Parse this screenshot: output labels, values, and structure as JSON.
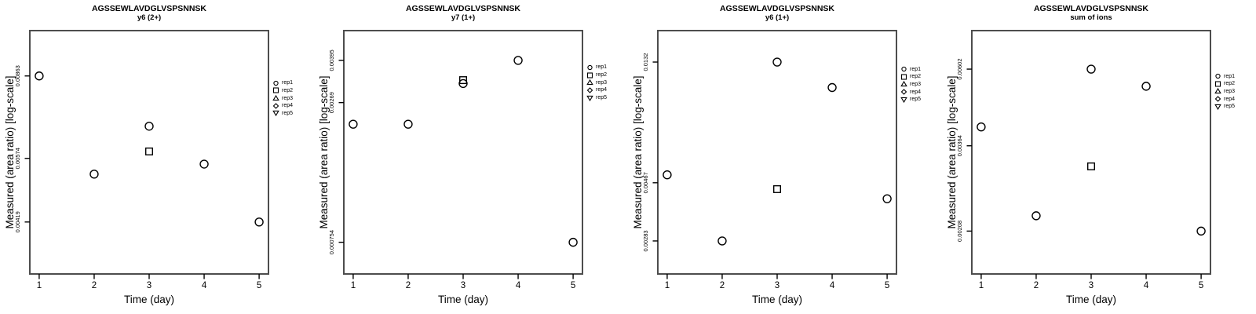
{
  "figure": {
    "xlabel": "Time (day)",
    "ylabel": "Measured (area ratio) [log-scale]",
    "legend": [
      {
        "label": "rep1",
        "marker": "circle"
      },
      {
        "label": "rep2",
        "marker": "square"
      },
      {
        "label": "rep3",
        "marker": "triangle-up"
      },
      {
        "label": "rep4",
        "marker": "diamond"
      },
      {
        "label": "rep5",
        "marker": "triangle-down"
      }
    ],
    "colors": {
      "marker": "#000000",
      "box": "#4d4d4d",
      "tick": "#000000",
      "text": "#000000",
      "background": "#ffffff"
    }
  },
  "chart_data": [
    {
      "type": "scatter",
      "title": "AGSSEWLAVDGLVSPSNNSK",
      "subtitle": "y6 (2+)",
      "xlabel": "Time (day)",
      "ylabel": "Measured (area ratio) [log-scale]",
      "x_scale": "linear",
      "y_scale": "log",
      "xlim": [
        0.83,
        5.17
      ],
      "ylim": [
        0.00324,
        0.0108
      ],
      "xticks": [
        "1",
        "2",
        "3",
        "4",
        "5"
      ],
      "yticks": [
        "0.00419",
        "0.00574",
        "0.00863"
      ],
      "grid": false,
      "legend_position": "right-outside",
      "series": [
        {
          "name": "rep1",
          "marker": "circle",
          "points": [
            [
              1,
              0.00863
            ],
            [
              2,
              0.00531
            ],
            [
              3,
              0.00673
            ],
            [
              4,
              0.00558
            ],
            [
              5,
              0.00419
            ]
          ]
        },
        {
          "name": "rep2",
          "marker": "square",
          "points": [
            [
              3,
              0.00594
            ]
          ]
        },
        {
          "name": "rep3",
          "marker": "triangle-up",
          "points": []
        },
        {
          "name": "rep4",
          "marker": "diamond",
          "points": []
        },
        {
          "name": "rep5",
          "marker": "triangle-down",
          "points": []
        }
      ]
    },
    {
      "type": "scatter",
      "title": "AGSSEWLAVDGLVSPSNNSK",
      "subtitle": "y7 (1+)",
      "xlabel": "Time (day)",
      "ylabel": "Measured (area ratio) [log-scale]",
      "x_scale": "linear",
      "y_scale": "log",
      "xlim": [
        0.83,
        5.17
      ],
      "ylim": [
        0.000565,
        0.00518
      ],
      "xticks": [
        "1",
        "2",
        "3",
        "4",
        "5"
      ],
      "yticks": [
        "0.000754",
        "0.00269",
        "0.00395"
      ],
      "grid": false,
      "legend_position": "right-outside",
      "series": [
        {
          "name": "rep1",
          "marker": "circle",
          "points": [
            [
              1,
              0.00221
            ],
            [
              2,
              0.00221
            ],
            [
              3,
              0.0032
            ],
            [
              4,
              0.00395
            ],
            [
              5,
              0.000754
            ]
          ]
        },
        {
          "name": "rep2",
          "marker": "square",
          "points": [
            [
              3,
              0.0033
            ]
          ]
        },
        {
          "name": "rep3",
          "marker": "triangle-up",
          "points": []
        },
        {
          "name": "rep4",
          "marker": "diamond",
          "points": []
        },
        {
          "name": "rep5",
          "marker": "triangle-down",
          "points": []
        }
      ]
    },
    {
      "type": "scatter",
      "title": "AGSSEWLAVDGLVSPSNNSK",
      "subtitle": "y6 (1+)",
      "xlabel": "Time (day)",
      "ylabel": "Measured (area ratio) [log-scale]",
      "x_scale": "linear",
      "y_scale": "log",
      "xlim": [
        0.83,
        5.17
      ],
      "ylim": [
        0.00213,
        0.0173
      ],
      "xticks": [
        "1",
        "2",
        "3",
        "4",
        "5"
      ],
      "yticks": [
        "0.00283",
        "0.00467",
        "0.0132"
      ],
      "grid": false,
      "legend_position": "right-outside",
      "series": [
        {
          "name": "rep1",
          "marker": "circle",
          "points": [
            [
              1,
              0.005
            ],
            [
              2,
              0.00283
            ],
            [
              3,
              0.0132
            ],
            [
              4,
              0.0106
            ],
            [
              5,
              0.00407
            ]
          ]
        },
        {
          "name": "rep2",
          "marker": "square",
          "points": [
            [
              3,
              0.00442
            ]
          ]
        },
        {
          "name": "rep3",
          "marker": "triangle-up",
          "points": []
        },
        {
          "name": "rep4",
          "marker": "diamond",
          "points": []
        },
        {
          "name": "rep5",
          "marker": "triangle-down",
          "points": []
        }
      ]
    },
    {
      "type": "scatter",
      "title": "AGSSEWLAVDGLVSPSNNSK",
      "subtitle": "sum of ions",
      "xlabel": "Time (day)",
      "ylabel": "Measured (area ratio) [log-scale]",
      "x_scale": "linear",
      "y_scale": "log",
      "xlim": [
        0.83,
        5.17
      ],
      "ylim": [
        0.00157,
        0.00775
      ],
      "xticks": [
        "1",
        "2",
        "3",
        "4",
        "5"
      ],
      "yticks": [
        "0.00208",
        "0.00364",
        "0.00602"
      ],
      "grid": false,
      "legend_position": "right-outside",
      "series": [
        {
          "name": "rep1",
          "marker": "circle",
          "points": [
            [
              1,
              0.00412
            ],
            [
              2,
              0.0023
            ],
            [
              3,
              0.00602
            ],
            [
              4,
              0.00538
            ],
            [
              5,
              0.00208
            ]
          ]
        },
        {
          "name": "rep2",
          "marker": "square",
          "points": [
            [
              3,
              0.00318
            ]
          ]
        },
        {
          "name": "rep3",
          "marker": "triangle-up",
          "points": []
        },
        {
          "name": "rep4",
          "marker": "diamond",
          "points": []
        },
        {
          "name": "rep5",
          "marker": "triangle-down",
          "points": []
        }
      ]
    }
  ]
}
